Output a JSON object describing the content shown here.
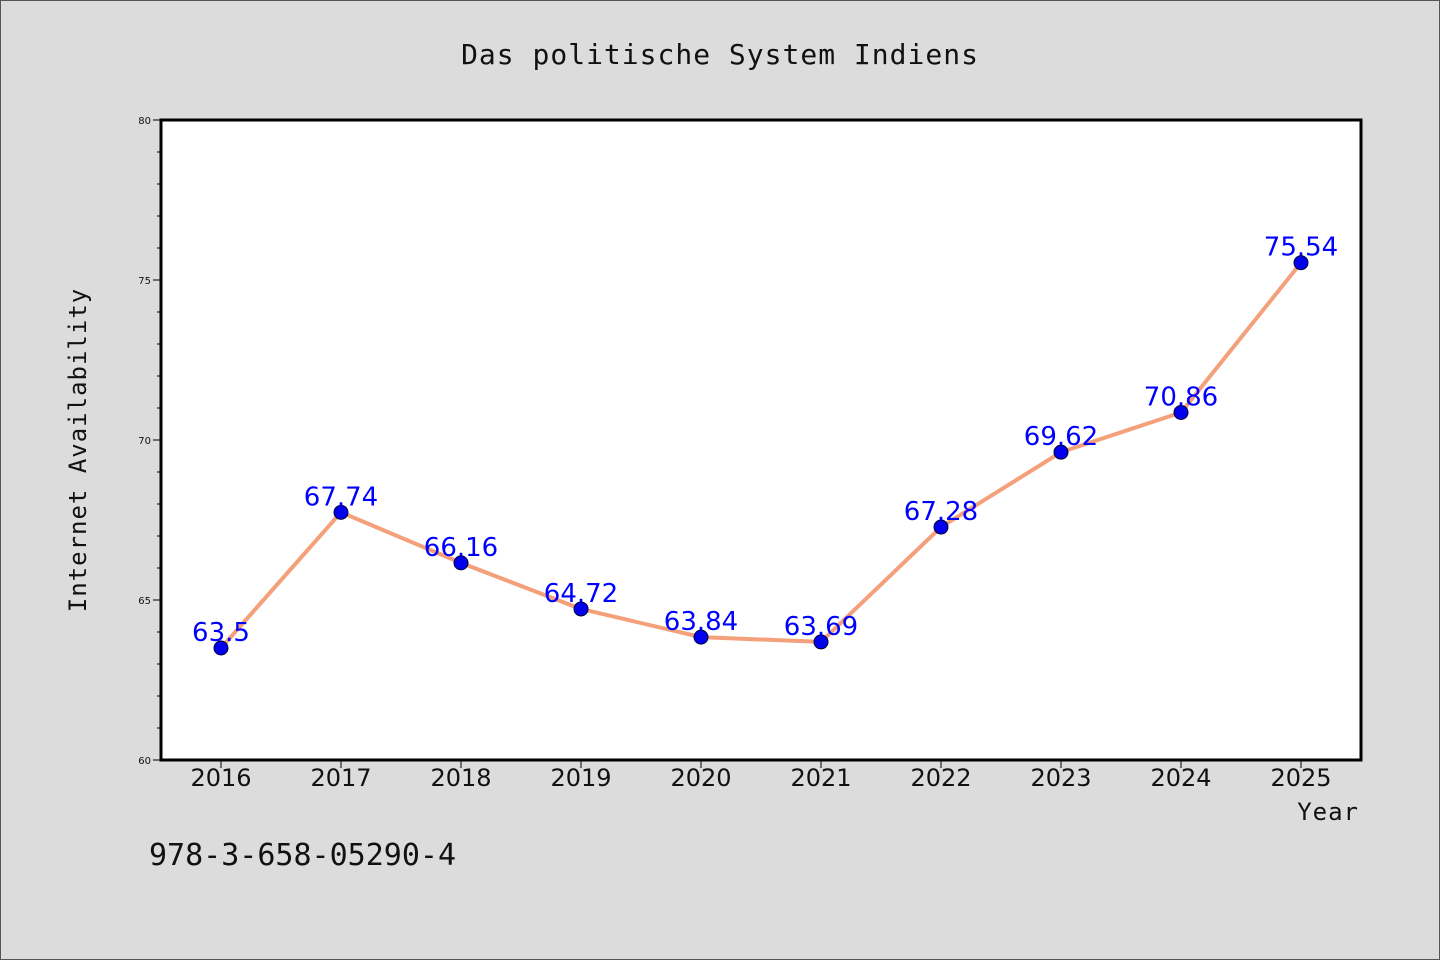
{
  "chart_data": {
    "type": "line",
    "title": "Das politische System Indiens",
    "xlabel": "Year",
    "ylabel": "Internet Availability",
    "categories": [
      "2016",
      "2017",
      "2018",
      "2019",
      "2020",
      "2021",
      "2022",
      "2023",
      "2024",
      "2025"
    ],
    "series": [
      {
        "values": [
          63.5,
          67.74,
          66.16,
          64.72,
          63.84,
          63.69,
          67.28,
          69.62,
          70.86,
          75.54
        ]
      }
    ],
    "data_labels": [
      "63.5",
      "67.74",
      "66.16",
      "64.72",
      "63.84",
      "63.69",
      "67.28",
      "69.62",
      "70.86",
      "75.54"
    ],
    "ylim": [
      60,
      80
    ],
    "y_ticks": [
      "60",
      "65",
      "70",
      "75",
      "80"
    ],
    "grid": false,
    "legend": "none",
    "line_color": "#f4a07a",
    "marker_color": "#0000ee",
    "label_color": "#0000ff"
  },
  "footnote": "978-3-658-05290-4"
}
